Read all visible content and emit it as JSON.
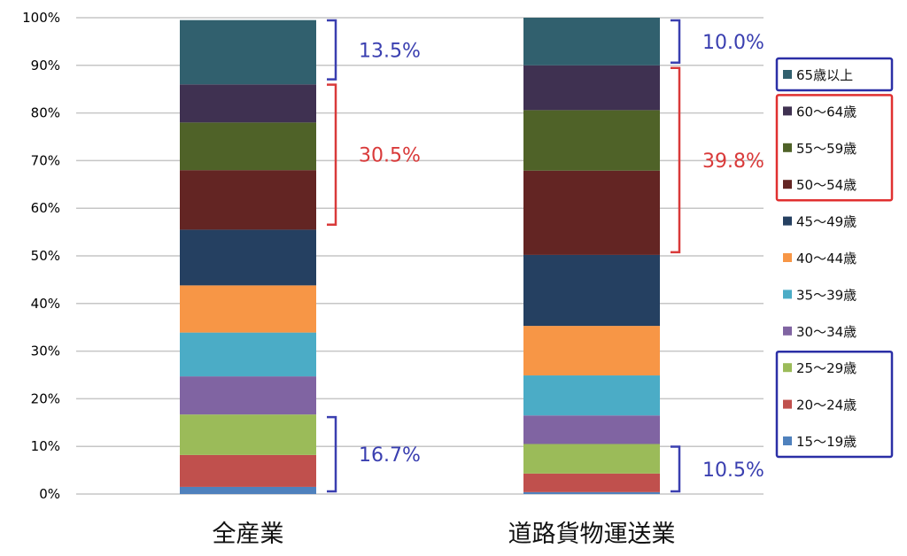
{
  "chart_data": {
    "type": "bar",
    "stacked": true,
    "title": "",
    "xlabel": "",
    "ylabel": "",
    "ylim": [
      0,
      100
    ],
    "y_ticks": [
      "0%",
      "10%",
      "20%",
      "30%",
      "40%",
      "50%",
      "60%",
      "70%",
      "80%",
      "90%",
      "100%"
    ],
    "grid": true,
    "legend_position": "right",
    "categories": [
      "全産業",
      "道路貨物運送業"
    ],
    "series": [
      {
        "name": "15～19歳",
        "color": "#4f81bd",
        "values": [
          1.5,
          0.4
        ]
      },
      {
        "name": "20～24歳",
        "color": "#c0504d",
        "values": [
          6.7,
          3.9
        ]
      },
      {
        "name": "25～29歳",
        "color": "#9bbb59",
        "values": [
          8.5,
          6.2
        ]
      },
      {
        "name": "30～34歳",
        "color": "#8064a2",
        "values": [
          8.0,
          6.0
        ]
      },
      {
        "name": "35～39歳",
        "color": "#4bacc6",
        "values": [
          9.2,
          8.4
        ]
      },
      {
        "name": "40～44歳",
        "color": "#f79646",
        "values": [
          9.9,
          10.4
        ]
      },
      {
        "name": "45～49歳",
        "color": "#254061",
        "values": [
          11.7,
          14.9
        ]
      },
      {
        "name": "50～54歳",
        "color": "#632523",
        "values": [
          12.5,
          17.7
        ]
      },
      {
        "name": "55～59歳",
        "color": "#4f6228",
        "values": [
          10.0,
          12.7
        ]
      },
      {
        "name": "60～64歳",
        "color": "#3f3151",
        "values": [
          8.0,
          9.4
        ]
      },
      {
        "name": "65歳以上",
        "color": "#31606e",
        "values": [
          13.5,
          10.0
        ]
      }
    ],
    "annotations": [
      {
        "label": "13.5%",
        "category": 0,
        "from": 86.5,
        "to": 100,
        "color": "#3a3fb0"
      },
      {
        "label": "30.5%",
        "category": 0,
        "from": 56,
        "to": 86.5,
        "color": "#d93a3a"
      },
      {
        "label": "16.7%",
        "category": 0,
        "from": 0,
        "to": 16.7,
        "color": "#3a3fb0"
      },
      {
        "label": "10.0%",
        "category": 1,
        "from": 90,
        "to": 100,
        "color": "#3a3fb0"
      },
      {
        "label": "39.8%",
        "category": 1,
        "from": 50.2,
        "to": 90,
        "color": "#d93a3a"
      },
      {
        "label": "10.5%",
        "category": 1,
        "from": 0,
        "to": 10.5,
        "color": "#3a3fb0"
      }
    ],
    "legend_groups": [
      {
        "series": [
          10
        ],
        "color": "#2b2fa6"
      },
      {
        "series": [
          9,
          8,
          7
        ],
        "color": "#e03030"
      },
      {
        "series": [
          2,
          1,
          0
        ],
        "color": "#2b2fa6"
      }
    ]
  }
}
